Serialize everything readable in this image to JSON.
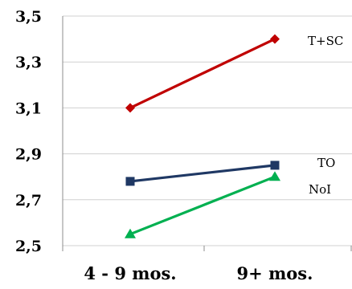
{
  "chart_data": {
    "type": "line",
    "categories": [
      "4 - 9 mos.",
      "9+ mos."
    ],
    "ylim": [
      2.5,
      3.5
    ],
    "yticks": [
      "2,5",
      "2,7",
      "2,9",
      "3,1",
      "3,3",
      "3,5"
    ],
    "ytick_values": [
      2.5,
      2.7,
      2.9,
      3.1,
      3.3,
      3.5
    ],
    "grid": true,
    "legend": "inline-right",
    "series": [
      {
        "name": "T+SC",
        "values": [
          3.1,
          3.4
        ],
        "color": "#c00000",
        "marker": "diamond"
      },
      {
        "name": "TO",
        "values": [
          2.78,
          2.85
        ],
        "color": "#1f3864",
        "marker": "square"
      },
      {
        "name": "NoI",
        "values": [
          2.55,
          2.8
        ],
        "color": "#00b050",
        "marker": "triangle"
      }
    ]
  }
}
